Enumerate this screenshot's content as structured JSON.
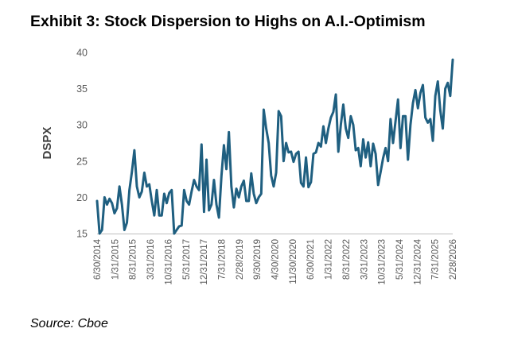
{
  "title": "Exhibit 3: Stock Dispersion to Highs on A.I.-Optimism",
  "source": "Source: Cboe",
  "chart_data": {
    "type": "line",
    "title": "Exhibit 3: Stock Dispersion to Highs on A.I.-Optimism",
    "xlabel": "",
    "ylabel": "DSPX",
    "ylim": [
      15,
      40
    ],
    "yticks": [
      15,
      20,
      25,
      30,
      35,
      40
    ],
    "grid": false,
    "legend": "none",
    "line_color": "#1f5f80",
    "x_tick_labels": [
      "6/30/2014",
      "1/31/2015",
      "8/31/2015",
      "3/31/2016",
      "10/31/2016",
      "5/31/2017",
      "12/31/2017",
      "7/31/2018",
      "2/28/2019",
      "9/30/2019",
      "4/30/2020",
      "11/30/2020",
      "6/30/2021",
      "1/31/2022",
      "8/31/2022",
      "3/31/2023",
      "10/31/2023",
      "5/31/2024",
      "12/31/2024",
      "7/31/2025",
      "2/28/2026"
    ],
    "series": [
      {
        "values": [
          19.5,
          15.0,
          15.5,
          20.0,
          19.0,
          19.8,
          19.2,
          17.8,
          18.5,
          21.5,
          19.0,
          15.5,
          16.5,
          21.0,
          23.5,
          26.5,
          21.5,
          20.0,
          20.8,
          23.4,
          21.5,
          21.8,
          19.5,
          17.5,
          21.0,
          17.5,
          17.5,
          20.5,
          19.2,
          20.6,
          21.0,
          15.0,
          15.5,
          16.0,
          16.1,
          21.0,
          19.5,
          19.0,
          20.8,
          22.4,
          21.5,
          21.0,
          27.3,
          18.0,
          25.2,
          18.2,
          19.0,
          22.4,
          19.0,
          17.2,
          22.9,
          27.2,
          23.9,
          29.0,
          21.5,
          18.6,
          21.2,
          20.0,
          21.5,
          22.3,
          19.5,
          19.5,
          23.3,
          20.5,
          19.2,
          20.0,
          20.5,
          32.1,
          29.5,
          27.5,
          23.0,
          21.5,
          23.4,
          31.9,
          31.2,
          25.0,
          27.5,
          26.2,
          26.3,
          24.9,
          26.0,
          26.3,
          22.0,
          21.5,
          25.5,
          21.4,
          22.1,
          26.0,
          26.2,
          27.5,
          27.0,
          29.8,
          27.5,
          29.5,
          31.0,
          31.8,
          34.2,
          26.3,
          30.0,
          32.8,
          29.5,
          28.2,
          31.2,
          30.0,
          26.5,
          26.8,
          24.3,
          28.0,
          25.5,
          27.6,
          24.3,
          27.4,
          26.0,
          21.7,
          23.5,
          25.4,
          26.8,
          25.0,
          30.8,
          27.5,
          30.5,
          33.5,
          26.8,
          31.2,
          31.2,
          25.2,
          30.0,
          33.0,
          34.8,
          32.3,
          34.4,
          35.5,
          31.0,
          30.3,
          30.8,
          27.8,
          34.0,
          36.0,
          32.0,
          29.5,
          35.0,
          35.8,
          34.0,
          39.0
        ]
      }
    ]
  }
}
